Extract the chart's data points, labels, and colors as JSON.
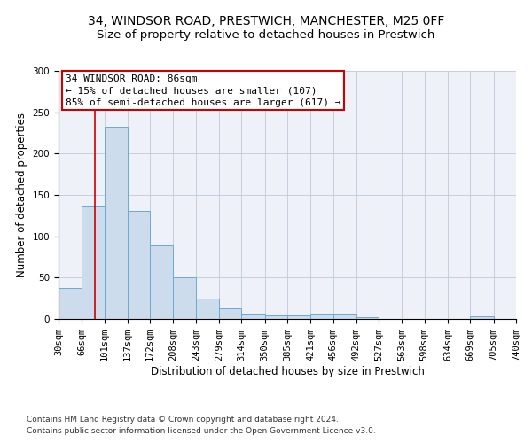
{
  "title1": "34, WINDSOR ROAD, PRESTWICH, MANCHESTER, M25 0FF",
  "title2": "Size of property relative to detached houses in Prestwich",
  "xlabel": "Distribution of detached houses by size in Prestwich",
  "ylabel": "Number of detached properties",
  "footnote1": "Contains HM Land Registry data © Crown copyright and database right 2024.",
  "footnote2": "Contains public sector information licensed under the Open Government Licence v3.0.",
  "bar_color": "#ccdcec",
  "bar_edgecolor": "#6aaad4",
  "grid_color": "#c0c8d8",
  "annotation_box_edgecolor": "#cc0000",
  "vline_color": "#cc0000",
  "bin_edges": [
    30,
    66,
    101,
    137,
    172,
    208,
    243,
    279,
    314,
    350,
    385,
    421,
    456,
    492,
    527,
    563,
    598,
    634,
    669,
    705,
    740
  ],
  "bar_heights": [
    37,
    136,
    232,
    131,
    89,
    50,
    25,
    13,
    6,
    4,
    4,
    6,
    6,
    2,
    0,
    0,
    0,
    0,
    3,
    0
  ],
  "vline_x": 86,
  "annotation_line1": "34 WINDSOR ROAD: 86sqm",
  "annotation_line2": "← 15% of detached houses are smaller (107)",
  "annotation_line3": "85% of semi-detached houses are larger (617) →",
  "ylim": [
    0,
    300
  ],
  "yticks": [
    0,
    50,
    100,
    150,
    200,
    250,
    300
  ],
  "background_color": "#eef2f8",
  "title1_fontsize": 10,
  "title2_fontsize": 9.5,
  "axis_label_fontsize": 8.5,
  "tick_fontsize": 7.5,
  "annotation_fontsize": 8,
  "footnote_fontsize": 6.5
}
